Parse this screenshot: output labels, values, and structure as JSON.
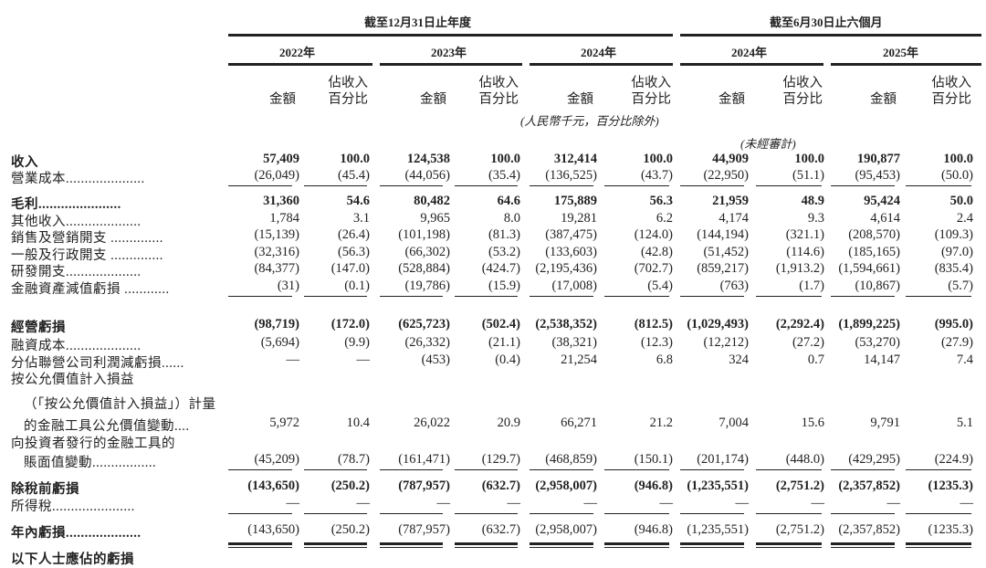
{
  "header": {
    "group_fy": "截至12月31日止年度",
    "group_h1": "截至6月30日止六個月",
    "years": [
      "2022年",
      "2023年",
      "2024年",
      "2024年",
      "2025年"
    ],
    "amount_label": "金額",
    "pct_label_line1": "佔收入",
    "pct_label_line2": "百分比",
    "unit_note": "(人民幣千元，百分比除外)",
    "unaudited_note": "(未經審計)"
  },
  "rows": [
    {
      "label": "收入",
      "bold": true,
      "values": [
        "57,409",
        "100.0",
        "124,538",
        "100.0",
        "312,414",
        "100.0",
        "44,909",
        "100.0",
        "190,877",
        "100.0"
      ]
    },
    {
      "label": "營業成本.....................",
      "values": [
        "(26,049)",
        "(45.4)",
        "(44,056)",
        "(35.4)",
        "(136,525)",
        "(43.7)",
        "(22,950)",
        "(51.1)",
        "(95,453)",
        "(50.0)"
      ]
    },
    {
      "label": "毛利......................",
      "bold": true,
      "values": [
        "31,360",
        "54.6",
        "80,482",
        "64.6",
        "175,889",
        "56.3",
        "21,959",
        "48.9",
        "95,424",
        "50.0"
      ]
    },
    {
      "label": "其他收入....................",
      "values": [
        "1,784",
        "3.1",
        "9,965",
        "8.0",
        "19,281",
        "6.2",
        "4,174",
        "9.3",
        "4,614",
        "2.4"
      ]
    },
    {
      "label": "銷售及營銷開支 ..............",
      "values": [
        "(15,139)",
        "(26.4)",
        "(101,198)",
        "(81.3)",
        "(387,475)",
        "(124.0)",
        "(144,194)",
        "(321.1)",
        "(208,570)",
        "(109.3)"
      ]
    },
    {
      "label": "一般及行政開支 ..............",
      "values": [
        "(32,316)",
        "(56.3)",
        "(66,302)",
        "(53.2)",
        "(133,603)",
        "(42.8)",
        "(51,452)",
        "(114.6)",
        "(185,165)",
        "(97.0)"
      ]
    },
    {
      "label": "研發開支....................",
      "values": [
        "(84,377)",
        "(147.0)",
        "(528,884)",
        "(424.7)",
        "(2,195,436)",
        "(702.7)",
        "(859,217)",
        "(1,913.2)",
        "(1,594,661)",
        "(835.4)"
      ]
    },
    {
      "label": "金融資產減值虧損 ............",
      "values": [
        "(31)",
        "(0.1)",
        "(19,786)",
        "(15.9)",
        "(17,008)",
        "(5.4)",
        "(763)",
        "(1.7)",
        "(10,867)",
        "(5.7)"
      ]
    },
    {
      "label": "經營虧損",
      "bold": true,
      "values": [
        "(98,719)",
        "(172.0)",
        "(625,723)",
        "(502.4)",
        "(2,538,352)",
        "(812.5)",
        "(1,029,493)",
        "(2,292.4)",
        "(1,899,225)",
        "(995.0)"
      ]
    },
    {
      "label": "融資成本....................",
      "values": [
        "(5,694)",
        "(9.9)",
        "(26,332)",
        "(21.1)",
        "(38,321)",
        "(12.3)",
        "(12,212)",
        "(27.2)",
        "(53,270)",
        "(27.9)"
      ]
    },
    {
      "label": "分佔聯營公司利潤減虧損......",
      "values": [
        "—",
        "—",
        "(453)",
        "(0.4)",
        "21,254",
        "6.8",
        "324",
        "0.7",
        "14,147",
        "7.4"
      ]
    },
    {
      "label": "按公允價值計入損益",
      "values": []
    },
    {
      "label": "（「按公允價值計入損益」）計量",
      "indent": true,
      "values": []
    },
    {
      "label": "的金融工具公允價值變動....",
      "indent": true,
      "values": [
        "5,972",
        "10.4",
        "26,022",
        "20.9",
        "66,271",
        "21.2",
        "7,004",
        "15.6",
        "9,791",
        "5.1"
      ]
    },
    {
      "label": "向投資者發行的金融工具的",
      "values": []
    },
    {
      "label": "賬面值變動.................",
      "indent": true,
      "values": [
        "(45,209)",
        "(78.7)",
        "(161,471)",
        "(129.7)",
        "(468,859)",
        "(150.1)",
        "(201,174)",
        "(448.0)",
        "(429,295)",
        "(224.9)"
      ]
    },
    {
      "label": "除稅前虧損",
      "bold": true,
      "values": [
        "(143,650)",
        "(250.2)",
        "(787,957)",
        "(632.7)",
        "(2,958,007)",
        "(946.8)",
        "(1,235,551)",
        "(2,751.2)",
        "(2,357,852)",
        "(1235.3)"
      ]
    },
    {
      "label": "所得稅......................",
      "values": [
        "—",
        "—",
        "—",
        "—",
        "—",
        "—",
        "—",
        "—",
        "—",
        "—"
      ]
    },
    {
      "label": "年內虧損....................",
      "boldLabel": true,
      "values": [
        "(143,650)",
        "(250.2)",
        "(787,957)",
        "(632.7)",
        "(2,958,007)",
        "(946.8)",
        "(1,235,551)",
        "(2,751.2)",
        "(2,357,852)",
        "(1235.3)"
      ]
    },
    {
      "label": "以下人士應佔的虧損",
      "bold": true,
      "values": []
    }
  ]
}
